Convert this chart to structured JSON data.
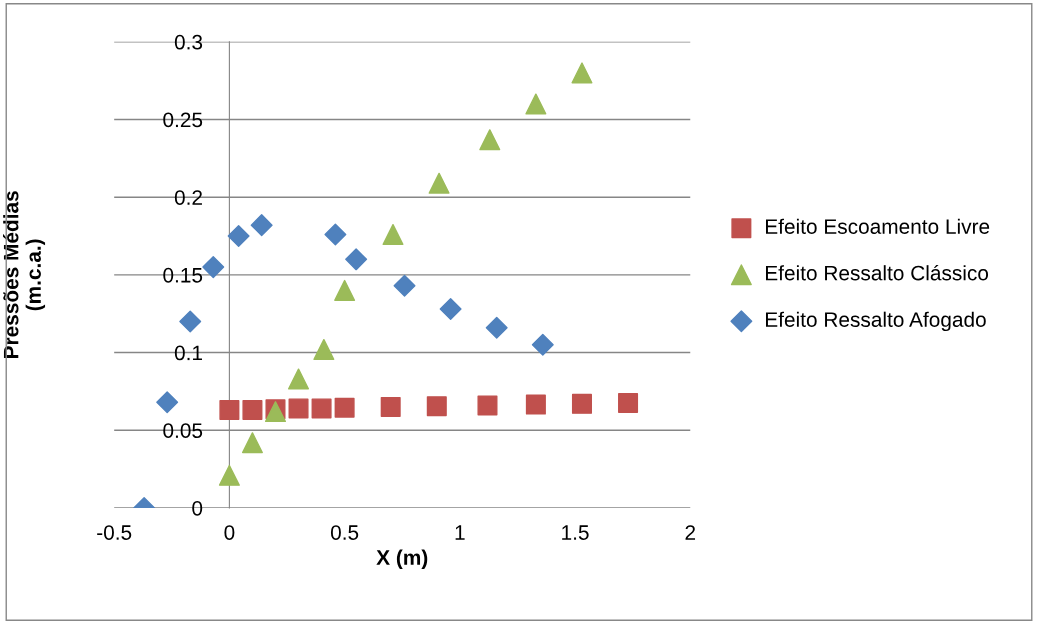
{
  "chart_data": {
    "type": "scatter",
    "xlabel": "X (m)",
    "ylabel": "Pressões Médias\n(m.c.a.)",
    "xlim": [
      -0.5,
      2
    ],
    "xticks": [
      {
        "value": -0.5,
        "label": "-0.5"
      },
      0,
      0.5,
      1,
      1.5,
      2
    ],
    "ylim": [
      0,
      0.3
    ],
    "yticks": [
      0,
      0.05,
      0.1,
      0.15,
      0.2,
      0.25,
      0.3
    ],
    "grid": "y",
    "legend": "right",
    "series": [
      {
        "name": "Efeito Escoamento Livre",
        "color": "#c0504d",
        "marker": "square",
        "x": [
          0,
          0.1,
          0.2,
          0.3,
          0.4,
          0.5,
          0.7,
          0.9,
          1.12,
          1.33,
          1.53,
          1.73
        ],
        "values": [
          0.063,
          0.063,
          0.0635,
          0.064,
          0.064,
          0.0645,
          0.065,
          0.0655,
          0.066,
          0.0665,
          0.067,
          0.0675
        ]
      },
      {
        "name": "Efeito Ressalto Clássico",
        "color": "#9bbb59",
        "marker": "triangle",
        "x": [
          0,
          0.1,
          0.2,
          0.3,
          0.41,
          0.5,
          0.71,
          0.91,
          1.13,
          1.33,
          1.53
        ],
        "values": [
          0.021,
          0.042,
          0.062,
          0.083,
          0.102,
          0.14,
          0.176,
          0.209,
          0.237,
          0.26,
          0.28
        ]
      },
      {
        "name": "Efeito Ressalto Afogado",
        "color": "#4f81bd",
        "marker": "diamond",
        "x": [
          -0.37,
          -0.27,
          -0.17,
          -0.07,
          0.04,
          0.14,
          0.46,
          0.55,
          0.76,
          0.96,
          1.16,
          1.36
        ],
        "values": [
          0,
          0.068,
          0.12,
          0.155,
          0.175,
          0.182,
          0.176,
          0.16,
          0.143,
          0.128,
          0.116,
          0.105
        ]
      }
    ]
  }
}
